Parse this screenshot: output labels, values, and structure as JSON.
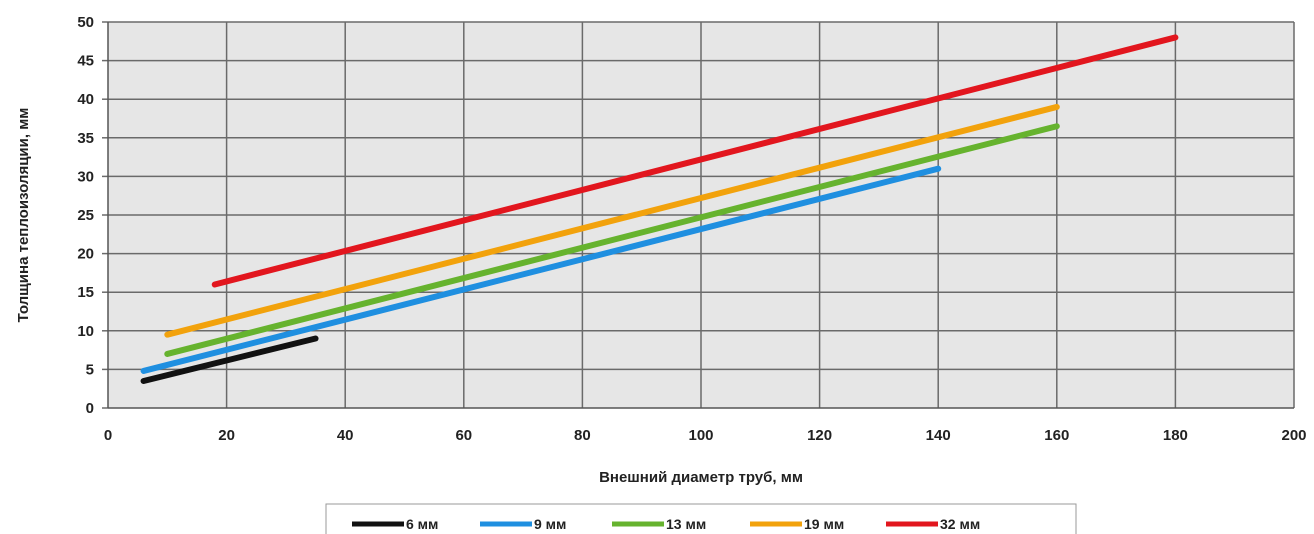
{
  "chart_data": {
    "type": "line",
    "title": "",
    "xlabel": "Внешний диаметр труб, мм",
    "ylabel": "Толщина теплоизоляции, мм",
    "xlim": [
      0,
      200
    ],
    "ylim": [
      0,
      50
    ],
    "xticks": [
      "0",
      "20",
      "40",
      "60",
      "80",
      "100",
      "120",
      "140",
      "160",
      "180",
      "200"
    ],
    "yticks": [
      "0",
      "5",
      "10",
      "15",
      "20",
      "25",
      "30",
      "35",
      "40",
      "45",
      "50"
    ],
    "grid": true,
    "legend_position": "bottom",
    "series": [
      {
        "name": "6 мм",
        "color": "#111111",
        "x": [
          6,
          35
        ],
        "y": [
          3.5,
          9
        ]
      },
      {
        "name": "9 мм",
        "color": "#1f8fe0",
        "x": [
          6,
          140
        ],
        "y": [
          4.8,
          31
        ]
      },
      {
        "name": "13 мм",
        "color": "#66b32e",
        "x": [
          10,
          160
        ],
        "y": [
          7,
          36.5
        ]
      },
      {
        "name": "19 мм",
        "color": "#f2a20c",
        "x": [
          10,
          160
        ],
        "y": [
          9.5,
          39
        ]
      },
      {
        "name": "32 мм",
        "color": "#e2161e",
        "x": [
          18,
          180
        ],
        "y": [
          16,
          48
        ]
      }
    ]
  }
}
